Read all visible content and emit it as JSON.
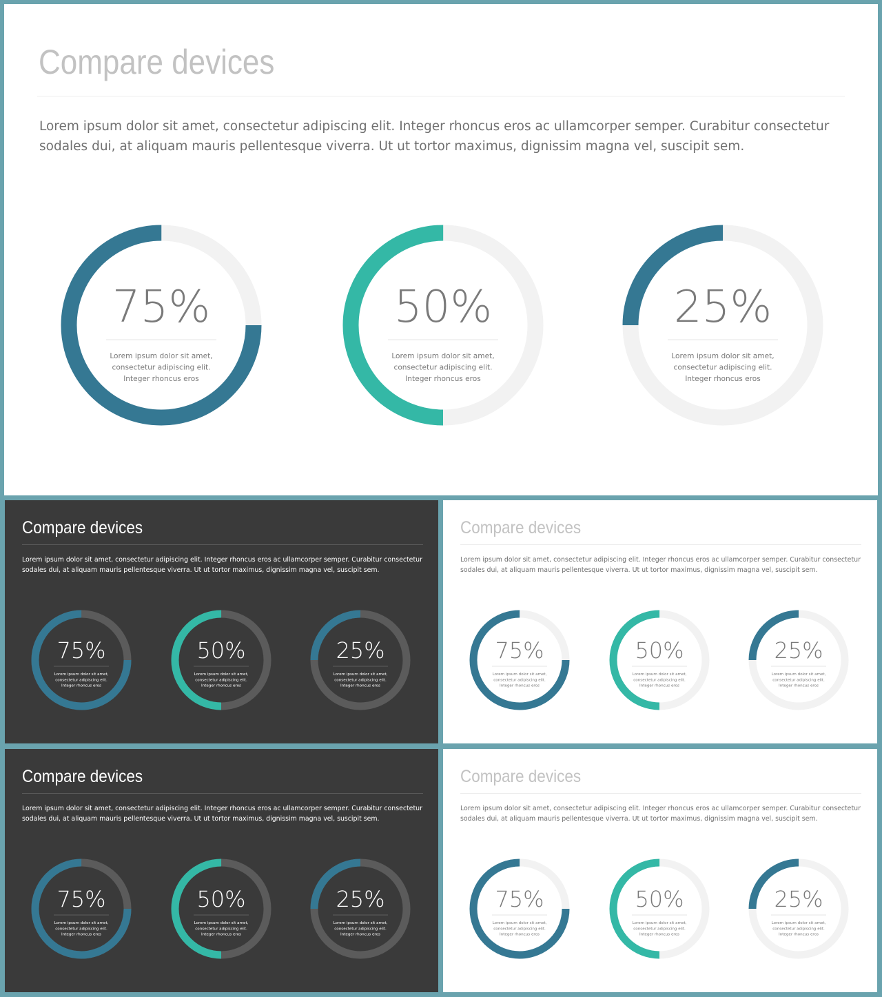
{
  "panels": [
    {
      "theme": "light",
      "title": "Compare devices",
      "description": "Lorem ipsum dolor sit amet, consectetur adipiscing elit. Integer rhoncus eros ac ullamcorper semper. Curabitur consectetur sodales dui, at aliquam mauris pellentesque viverra. Ut ut tortor maximus, dignissim magna vel, suscipit sem."
    },
    {
      "theme": "dark",
      "title": "Compare devices",
      "description": "Lorem ipsum dolor sit amet, consectetur adipiscing elit. Integer rhoncus eros ac ullamcorper semper. Curabitur consectetur sodales dui, at aliquam mauris pellentesque viverra. Ut ut tortor maximus, dignissim magna vel, suscipit sem."
    },
    {
      "theme": "light",
      "title": "Compare devices",
      "description": "Lorem ipsum dolor sit amet, consectetur adipiscing elit. Integer rhoncus eros ac ullamcorper semper. Curabitur consectetur sodales dui, at aliquam mauris pellentesque viverra. Ut ut tortor maximus, dignissim magna vel, suscipit sem."
    },
    {
      "theme": "dark",
      "title": "Compare devices",
      "description": "Lorem ipsum dolor sit amet, consectetur adipiscing elit. Integer rhoncus eros ac ullamcorper semper. Curabitur consectetur sodales dui, at aliquam mauris pellentesque viverra. Ut ut tortor maximus, dignissim magna vel, suscipit sem."
    },
    {
      "theme": "light",
      "title": "Compare devices",
      "description": "Lorem ipsum dolor sit amet, consectetur adipiscing elit. Integer rhoncus eros ac ullamcorper semper. Curabitur consectetur sodales dui, at aliquam mauris pellentesque viverra. Ut ut tortor maximus, dignissim magna vel, suscipit sem."
    }
  ],
  "colors": {
    "blue": "#357893",
    "teal": "#34b8a6",
    "track_light": "#f2f2f2",
    "track_dark": "#5b5b5b",
    "frame": "#6aa3ae"
  },
  "chart_data": {
    "type": "donut",
    "series": [
      {
        "value": 75,
        "label": "75%",
        "caption": [
          "Lorem ipsum dolor sit amet,",
          "consectetur adipiscing elit.",
          "Integer rhoncus eros"
        ],
        "color": "#357893"
      },
      {
        "value": 50,
        "label": "50%",
        "caption": [
          "Lorem ipsum dolor sit amet,",
          "consectetur adipiscing elit.",
          "Integer rhoncus eros"
        ],
        "color": "#34b8a6"
      },
      {
        "value": 25,
        "label": "25%",
        "caption": [
          "Lorem ipsum dolor sit amet,",
          "consectetur adipiscing elit.",
          "Integer rhoncus eros"
        ],
        "color": "#357893"
      }
    ]
  }
}
